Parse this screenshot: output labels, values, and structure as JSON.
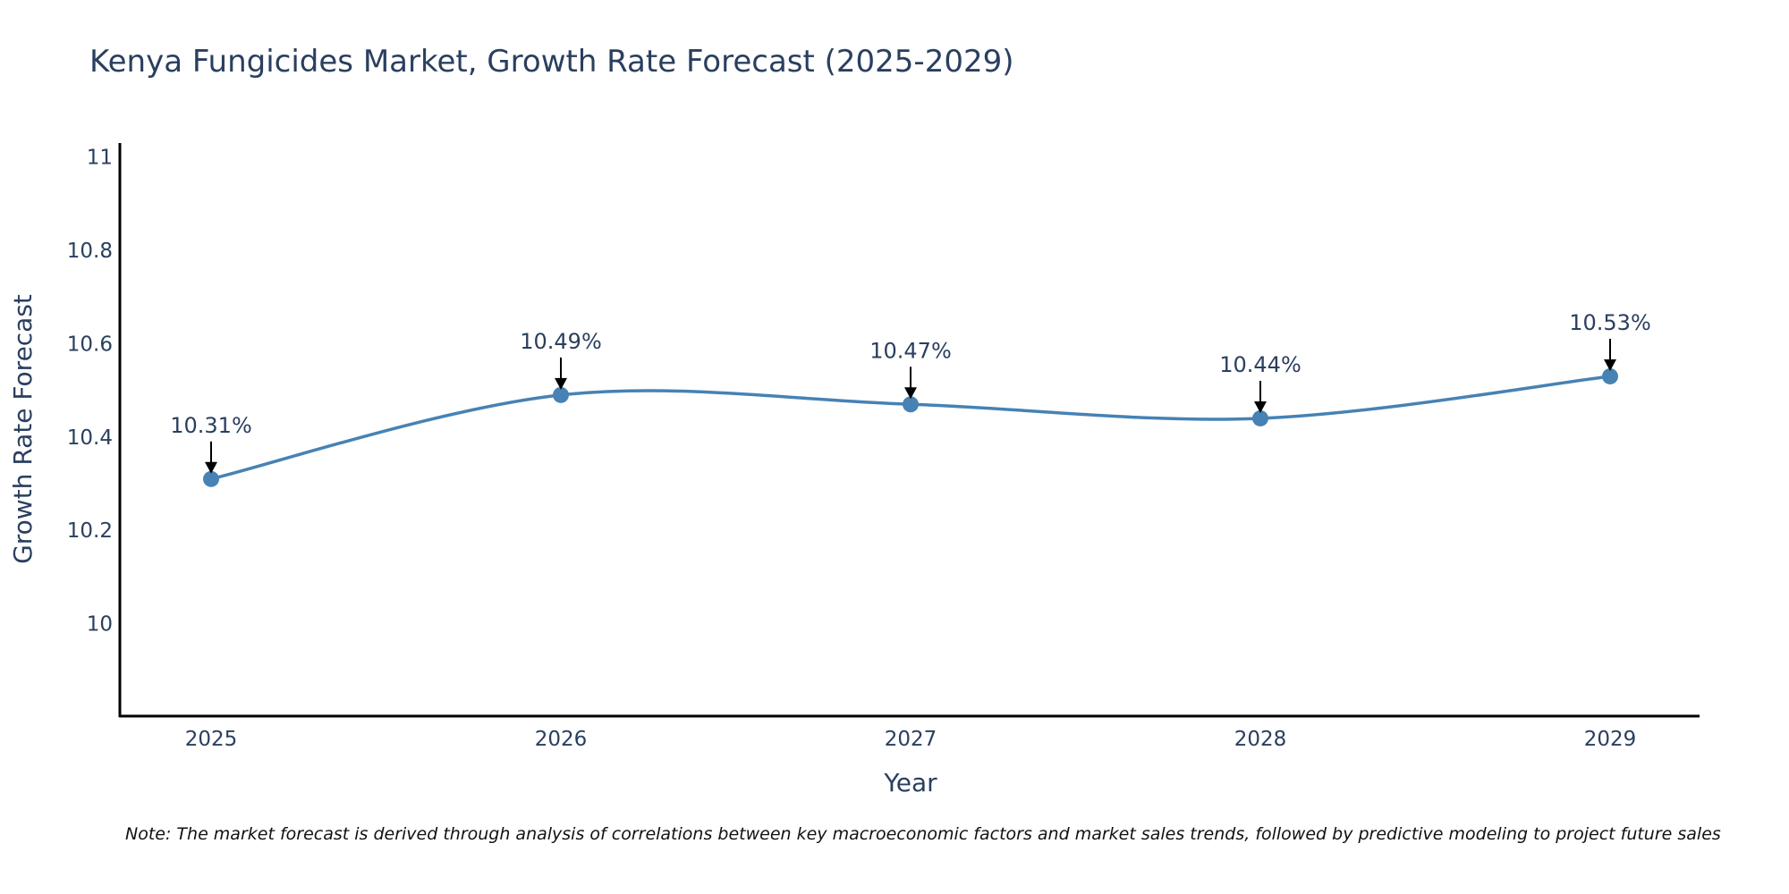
{
  "chart_data": {
    "type": "line",
    "title": "Kenya Fungicides Market, Growth Rate Forecast (2025-2029)",
    "xlabel": "Year",
    "ylabel": "Growth Rate Forecast",
    "categories": [
      "2025",
      "2026",
      "2027",
      "2028",
      "2029"
    ],
    "series": [
      {
        "name": "Growth Rate Forecast",
        "values": [
          10.31,
          10.49,
          10.47,
          10.44,
          10.53
        ],
        "labels": [
          "10.31%",
          "10.49%",
          "10.47%",
          "10.44%",
          "10.53%"
        ]
      }
    ],
    "ylim": [
      9.8,
      11.03
    ],
    "yticks": [
      "10",
      "10.2",
      "10.4",
      "10.6",
      "10.8",
      "11"
    ],
    "ytick_values": [
      10,
      10.2,
      10.4,
      10.6,
      10.8,
      11
    ],
    "line_color": "#4682b4",
    "grid": false,
    "smoothing": "spline"
  },
  "note": "Note: The market forecast is derived through analysis of correlations between key macroeconomic factors and market sales trends, followed by predictive modeling to project future sales"
}
